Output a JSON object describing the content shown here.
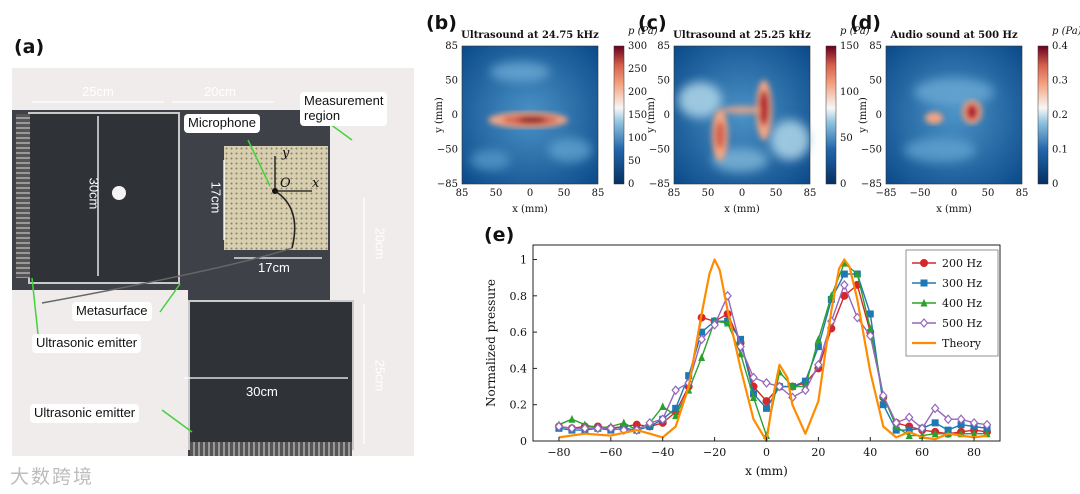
{
  "labels": {
    "a": "(a)",
    "b": "(b)",
    "c": "(c)",
    "d": "(d)",
    "e": "(e)"
  },
  "photo": {
    "dims": {
      "w1": "25cm",
      "w2": "20cm",
      "h1": "30cm",
      "grid_h": "17cm",
      "grid_w": "17cm",
      "right_v1": "20cm",
      "right_v2": "25cm",
      "bottom_w": "30cm"
    },
    "callouts": {
      "measurement": "Measurement\nregion",
      "microphone": "Microphone",
      "metasurface": "Metasurface",
      "emitter_1": "Ultrasonic emitter",
      "emitter_2": "Ultrasonic emitter"
    },
    "axes": {
      "y": "y",
      "x": "x",
      "o": "O"
    }
  },
  "heatmaps": [
    {
      "title": "Ultrasound at 24.75 kHz",
      "unit": "p (Pa)",
      "cbar_ticks": [
        "300",
        "250",
        "200",
        "150",
        "100",
        "50",
        "0"
      ],
      "yticks": [
        "85",
        "50",
        "0",
        "−50",
        "−85"
      ],
      "xticks": [
        "85",
        "50",
        "0",
        "50",
        "85"
      ],
      "ylabel": "y (mm)",
      "xlabel": "x (mm)"
    },
    {
      "title": "Ultrasound at 25.25 kHz",
      "unit": "p (Pa)",
      "cbar_ticks": [
        "150",
        "100",
        "50",
        "0"
      ],
      "yticks": [
        "85",
        "50",
        "0",
        "−50",
        "−85"
      ],
      "xticks": [
        "85",
        "50",
        "0",
        "50",
        "85"
      ],
      "ylabel": "y (mm)",
      "xlabel": "x (mm)"
    },
    {
      "title": "Audio sound at 500 Hz",
      "unit": "p (Pa)",
      "cbar_ticks": [
        "0.4",
        "0.3",
        "0.2",
        "0.1",
        "0"
      ],
      "yticks": [
        "85",
        "50",
        "0",
        "−50",
        "−85"
      ],
      "xticks": [
        "−85",
        "−50",
        "0",
        "50",
        "85"
      ],
      "ylabel": "y (mm)",
      "xlabel": "x (mm)"
    }
  ],
  "watermark": "大数跨境",
  "chart_data": {
    "type": "line",
    "xlabel": "x (mm)",
    "ylabel": "Normalized pressure",
    "xlim": [
      -90,
      90
    ],
    "ylim": [
      0,
      1.08
    ],
    "xticks": [
      -80,
      -60,
      -40,
      -20,
      0,
      20,
      40,
      60,
      80
    ],
    "yticks": [
      0,
      0.2,
      0.4,
      0.6,
      0.8,
      1
    ],
    "legend_position": "top-right",
    "series": [
      {
        "name": "200 Hz",
        "color": "#d62728",
        "marker": "circle",
        "x": [
          -80,
          -75,
          -70,
          -65,
          -60,
          -55,
          -50,
          -45,
          -40,
          -35,
          -30,
          -25,
          -20,
          -15,
          -10,
          -5,
          0,
          5,
          10,
          15,
          20,
          25,
          30,
          35,
          40,
          45,
          50,
          55,
          60,
          65,
          70,
          75,
          80,
          85
        ],
        "y": [
          0.08,
          0.07,
          0.08,
          0.08,
          0.07,
          0.08,
          0.09,
          0.08,
          0.1,
          0.16,
          0.3,
          0.68,
          0.66,
          0.7,
          0.54,
          0.3,
          0.22,
          0.3,
          0.3,
          0.32,
          0.4,
          0.62,
          0.8,
          0.86,
          0.6,
          0.24,
          0.1,
          0.08,
          0.06,
          0.05,
          0.04,
          0.05,
          0.06,
          0.05
        ]
      },
      {
        "name": "300 Hz",
        "color": "#1f77b4",
        "marker": "square",
        "x": [
          -80,
          -75,
          -70,
          -65,
          -60,
          -55,
          -50,
          -45,
          -40,
          -35,
          -30,
          -25,
          -20,
          -15,
          -10,
          -5,
          0,
          5,
          10,
          15,
          20,
          25,
          30,
          35,
          40,
          45,
          50,
          55,
          60,
          65,
          70,
          75,
          80,
          85
        ],
        "y": [
          0.07,
          0.06,
          0.06,
          0.07,
          0.06,
          0.07,
          0.06,
          0.08,
          0.12,
          0.18,
          0.36,
          0.6,
          0.66,
          0.66,
          0.56,
          0.26,
          0.18,
          0.3,
          0.3,
          0.33,
          0.52,
          0.78,
          0.92,
          0.92,
          0.7,
          0.2,
          0.06,
          0.06,
          0.07,
          0.1,
          0.06,
          0.09,
          0.08,
          0.07
        ]
      },
      {
        "name": "400 Hz",
        "color": "#2ca02c",
        "marker": "triangle",
        "x": [
          -80,
          -75,
          -70,
          -65,
          -60,
          -55,
          -50,
          -45,
          -40,
          -35,
          -30,
          -25,
          -20,
          -15,
          -10,
          -5,
          0,
          5,
          10,
          15,
          20,
          25,
          30,
          35,
          40,
          45,
          50,
          55,
          60,
          65,
          70,
          75,
          80,
          85
        ],
        "y": [
          0.09,
          0.12,
          0.09,
          0.07,
          0.08,
          0.1,
          0.06,
          0.1,
          0.19,
          0.14,
          0.28,
          0.46,
          0.66,
          0.65,
          0.48,
          0.24,
          0.03,
          0.38,
          0.3,
          0.3,
          0.56,
          0.8,
          0.98,
          0.92,
          0.62,
          0.25,
          0.08,
          0.03,
          0.03,
          0.04,
          0.04,
          0.04,
          0.04,
          0.04
        ]
      },
      {
        "name": "500 Hz",
        "color": "#9467bd",
        "marker": "diamond",
        "x": [
          -80,
          -75,
          -70,
          -65,
          -60,
          -55,
          -50,
          -45,
          -40,
          -35,
          -30,
          -25,
          -20,
          -15,
          -10,
          -5,
          0,
          5,
          10,
          15,
          20,
          25,
          30,
          35,
          40,
          45,
          50,
          55,
          60,
          65,
          70,
          75,
          80,
          85
        ],
        "y": [
          0.08,
          0.07,
          0.07,
          0.07,
          0.07,
          0.06,
          0.06,
          0.1,
          0.12,
          0.28,
          0.32,
          0.56,
          0.64,
          0.8,
          0.52,
          0.35,
          0.32,
          0.3,
          0.24,
          0.28,
          0.42,
          0.66,
          0.86,
          0.68,
          0.58,
          0.25,
          0.1,
          0.13,
          0.07,
          0.18,
          0.12,
          0.12,
          0.1,
          0.09
        ]
      },
      {
        "name": "Theory",
        "color": "#ff8c00",
        "marker": "none",
        "x": [
          -80,
          -70,
          -60,
          -50,
          -45,
          -40,
          -35,
          -30,
          -25,
          -22,
          -20,
          -18,
          -15,
          -10,
          -5,
          0,
          3,
          5,
          8,
          10,
          15,
          20,
          25,
          28,
          30,
          32,
          35,
          40,
          45,
          50,
          55,
          60,
          65,
          70,
          80,
          85
        ],
        "y": [
          0.02,
          0.04,
          0.03,
          0.06,
          0.04,
          0.02,
          0.08,
          0.3,
          0.7,
          0.92,
          1.0,
          0.94,
          0.72,
          0.4,
          0.12,
          0.0,
          0.28,
          0.42,
          0.35,
          0.2,
          0.04,
          0.22,
          0.72,
          0.95,
          1.0,
          0.96,
          0.78,
          0.38,
          0.08,
          0.02,
          0.05,
          0.02,
          0.01,
          0.04,
          0.02,
          0.03
        ]
      }
    ]
  }
}
